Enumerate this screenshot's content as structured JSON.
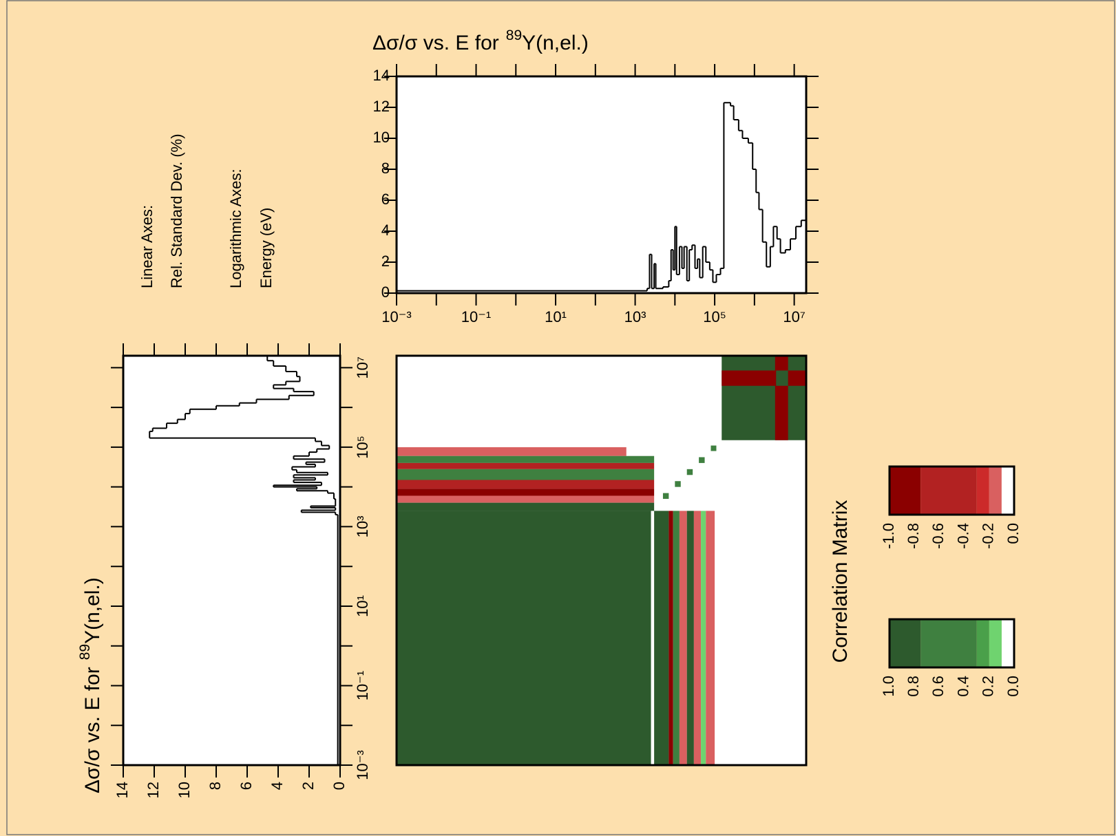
{
  "chart_data": [
    {
      "type": "step",
      "title": "Δσ/σ vs. E for",
      "title_superscript": "89",
      "title_suffix": "Y(n,el.)",
      "axis_notes": [
        "Linear Axes:",
        "Rel. Standard Dev. (%)",
        "Logarithmic Axes:",
        "Energy (eV)"
      ],
      "series": [
        {
          "color": "#000000",
          "x": [
            0.001,
            2000,
            2300,
            2600,
            3000,
            3300,
            5000,
            7000,
            8000,
            9000,
            10000,
            11000,
            13000,
            15000,
            17000,
            20000,
            23000,
            27000,
            32000,
            37000,
            42000,
            50000,
            60000,
            75000,
            90000,
            110000,
            140000,
            170000,
            250000,
            300000,
            400000,
            500000,
            700000,
            900000,
            1100000,
            1300000,
            1600000,
            2000000,
            2500000,
            3000000,
            3700000,
            4500000,
            6000000,
            8000000,
            11000000,
            15000000
          ],
          "values": [
            0.15,
            0.3,
            2.5,
            0.3,
            1.9,
            0.3,
            0.4,
            0.8,
            2.8,
            1.5,
            4.3,
            1.2,
            3.0,
            1.6,
            3.0,
            0.8,
            2.8,
            3.1,
            1.6,
            2.2,
            1.0,
            3.0,
            2.0,
            1.5,
            0.7,
            1.2,
            1.6,
            12.3,
            12.1,
            11.2,
            10.5,
            10.0,
            9.7,
            8.0,
            6.5,
            5.4,
            3.3,
            1.7,
            3.0,
            4.3,
            3.5,
            2.6,
            2.8,
            3.5,
            4.3,
            4.7
          ]
        }
      ],
      "xlog": true,
      "xlim": [
        0.001,
        20000000
      ],
      "ylim": [
        0,
        14
      ],
      "yticks": [
        0,
        2,
        4,
        6,
        8,
        10,
        12,
        14
      ],
      "xticks": [
        {
          "value": 0.001,
          "label": "10⁻³"
        },
        {
          "value": 0.1,
          "label": "10⁻¹"
        },
        {
          "value": 10,
          "label": "10¹"
        },
        {
          "value": 1000,
          "label": "10³"
        },
        {
          "value": 100000,
          "label": "10⁵"
        },
        {
          "value": 10000000,
          "label": "10⁷"
        }
      ],
      "xminor_ticks": [
        0.01,
        1,
        100,
        10000,
        1000000
      ]
    },
    {
      "type": "step-rotated",
      "title": "Δσ/σ vs. E for",
      "title_superscript": "89",
      "title_suffix": "Y(n,el.)"
    },
    {
      "type": "heatmap",
      "title": "Correlation Matrix",
      "xlim": [
        0.001,
        20000000
      ],
      "ylim": [
        0.001,
        20000000
      ],
      "blocks": [
        {
          "x": [
            0.001,
            2500
          ],
          "y": [
            0.001,
            2500
          ],
          "value": 0.9
        },
        {
          "x": [
            3000,
            7000
          ],
          "y": [
            0.001,
            2500
          ],
          "value": 0.9
        },
        {
          "x": [
            7000,
            9000
          ],
          "y": [
            0.001,
            2500
          ],
          "value": -0.9
        },
        {
          "x": [
            9000,
            13000
          ],
          "y": [
            0.001,
            2500
          ],
          "value": 0.5
        },
        {
          "x": [
            13000,
            20000
          ],
          "y": [
            0.001,
            2500
          ],
          "value": -0.15
        },
        {
          "x": [
            20000,
            30000
          ],
          "y": [
            0.001,
            2500
          ],
          "value": 0.9
        },
        {
          "x": [
            30000,
            45000
          ],
          "y": [
            0.001,
            2500
          ],
          "value": -0.15
        },
        {
          "x": [
            45000,
            60000
          ],
          "y": [
            0.001,
            2500
          ],
          "value": 0.15
        },
        {
          "x": [
            60000,
            100000
          ],
          "y": [
            0.001,
            2500
          ],
          "value": -0.15
        },
        {
          "x": [
            0.001,
            600
          ],
          "y": [
            60000,
            100000
          ],
          "value": -0.15
        },
        {
          "x": [
            0.001,
            3000
          ],
          "y": [
            40000,
            60000
          ],
          "value": 0.5
        },
        {
          "x": [
            0.001,
            3000
          ],
          "y": [
            28000,
            40000
          ],
          "value": -0.5
        },
        {
          "x": [
            0.001,
            3000
          ],
          "y": [
            15000,
            28000
          ],
          "value": 0.5
        },
        {
          "x": [
            0.001,
            3000
          ],
          "y": [
            9000,
            15000
          ],
          "value": -0.5
        },
        {
          "x": [
            0.001,
            3000
          ],
          "y": [
            6000,
            9000
          ],
          "value": -0.9
        },
        {
          "x": [
            0.001,
            3000
          ],
          "y": [
            4000,
            6000
          ],
          "value": -0.15
        },
        {
          "x": [
            0.001,
            3000
          ],
          "y": [
            2500,
            4000
          ],
          "value": 0.9
        },
        {
          "x": [
            5000,
            7000
          ],
          "y": [
            5000,
            7000
          ],
          "value": 0.5
        },
        {
          "x": [
            10000,
            14000
          ],
          "y": [
            10000,
            14000
          ],
          "value": 0.5
        },
        {
          "x": [
            20000,
            28000
          ],
          "y": [
            20000,
            28000
          ],
          "value": 0.5
        },
        {
          "x": [
            40000,
            56000
          ],
          "y": [
            40000,
            56000
          ],
          "value": 0.5
        },
        {
          "x": [
            80000,
            110000
          ],
          "y": [
            80000,
            110000
          ],
          "value": 0.5
        },
        {
          "x": [
            150000,
            20000000
          ],
          "y": [
            150000,
            20000000
          ],
          "value": 0.9
        },
        {
          "x": [
            150000,
            20000000
          ],
          "y": [
            3500000,
            8500000
          ],
          "value": -0.9
        },
        {
          "x": [
            3300000,
            7000000
          ],
          "y": [
            150000,
            20000000
          ],
          "value": -0.9
        },
        {
          "x": [
            3500000,
            7000000
          ],
          "y": [
            3500000,
            8500000
          ],
          "value": 0.9
        }
      ],
      "colorbars": [
        {
          "clim": [
            -1,
            0
          ],
          "levels": [
            -1,
            -0.75,
            -0.3,
            -0.2,
            -0.1,
            0
          ],
          "colors": [
            "#8b0000",
            "#b22222",
            "#cc2a2a",
            "#d96060",
            "#ffffff"
          ],
          "ticks": [
            {
              "value": -1,
              "label": "-1.0"
            },
            {
              "value": -0.8,
              "label": "-0.8"
            },
            {
              "value": -0.6,
              "label": "-0.6"
            },
            {
              "value": -0.4,
              "label": "-0.4"
            },
            {
              "value": -0.2,
              "label": "-0.2"
            },
            {
              "value": 0,
              "label": "0.0"
            }
          ]
        },
        {
          "clim": [
            1,
            0
          ],
          "levels": [
            0,
            0.1,
            0.2,
            0.3,
            0.75,
            1
          ],
          "colors": [
            "#ffffff",
            "#6fd36f",
            "#4aa04a",
            "#3f8040",
            "#2d5a2d"
          ],
          "ticks": [
            {
              "value": 1,
              "label": "1.0"
            },
            {
              "value": 0.8,
              "label": "0.8"
            },
            {
              "value": 0.6,
              "label": "0.6"
            },
            {
              "value": 0.4,
              "label": "0.4"
            },
            {
              "value": 0.2,
              "label": "0.2"
            },
            {
              "value": 0,
              "label": "0.0"
            }
          ]
        }
      ]
    }
  ]
}
